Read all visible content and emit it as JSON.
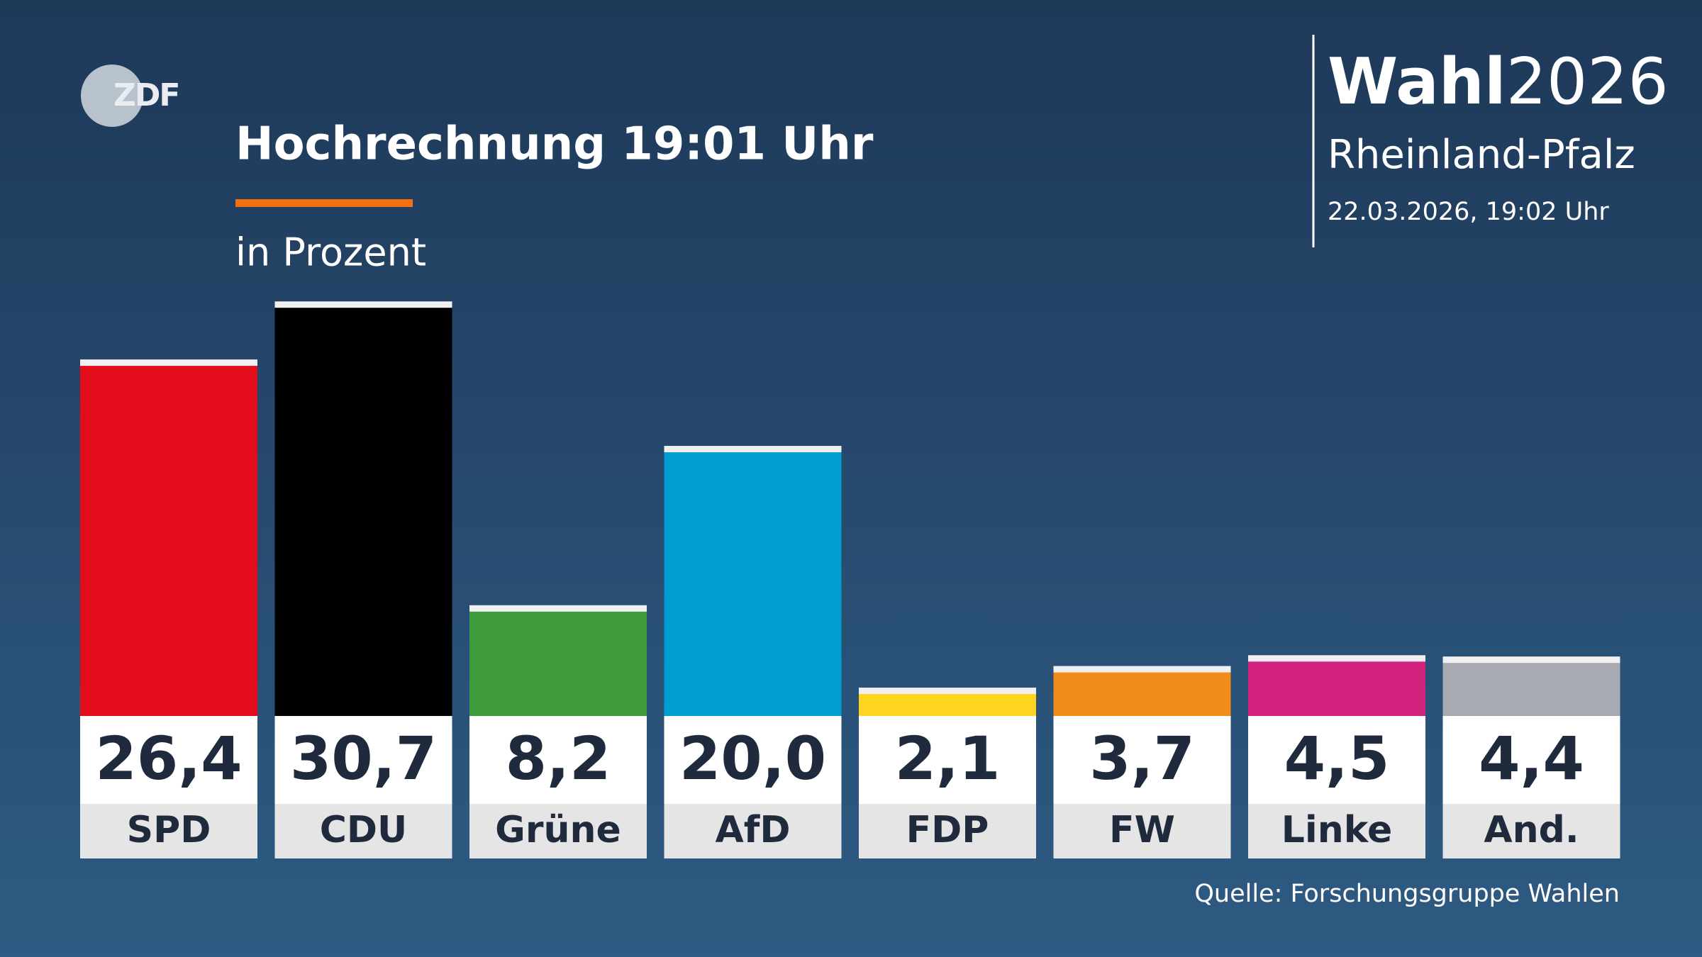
{
  "chart_data": {
    "type": "bar",
    "logo": "ZDF",
    "title": "Hochrechnung 19:01 Uhr",
    "subtitle": "in Prozent",
    "brand_bold": "Wahl",
    "brand_light": "2026",
    "region": "Rheinland-Pfalz",
    "timestamp": "22.03.2026, 19:02 Uhr",
    "source": "Quelle: Forschungsgruppe Wahlen",
    "categories": [
      "SPD",
      "CDU",
      "Grüne",
      "AfD",
      "FDP",
      "FW",
      "Linke",
      "And."
    ],
    "values": [
      26.4,
      30.7,
      8.2,
      20.0,
      2.1,
      3.7,
      4.5,
      4.4
    ],
    "value_labels": [
      "26,4",
      "30,7",
      "8,2",
      "20,0",
      "2,1",
      "3,7",
      "4,5",
      "4,4"
    ],
    "colors": [
      "#e30c1a",
      "#000000",
      "#409b3d",
      "#009dd3",
      "#fdd51f",
      "#f18c1c",
      "#d1237d",
      "#a7aab0"
    ]
  }
}
